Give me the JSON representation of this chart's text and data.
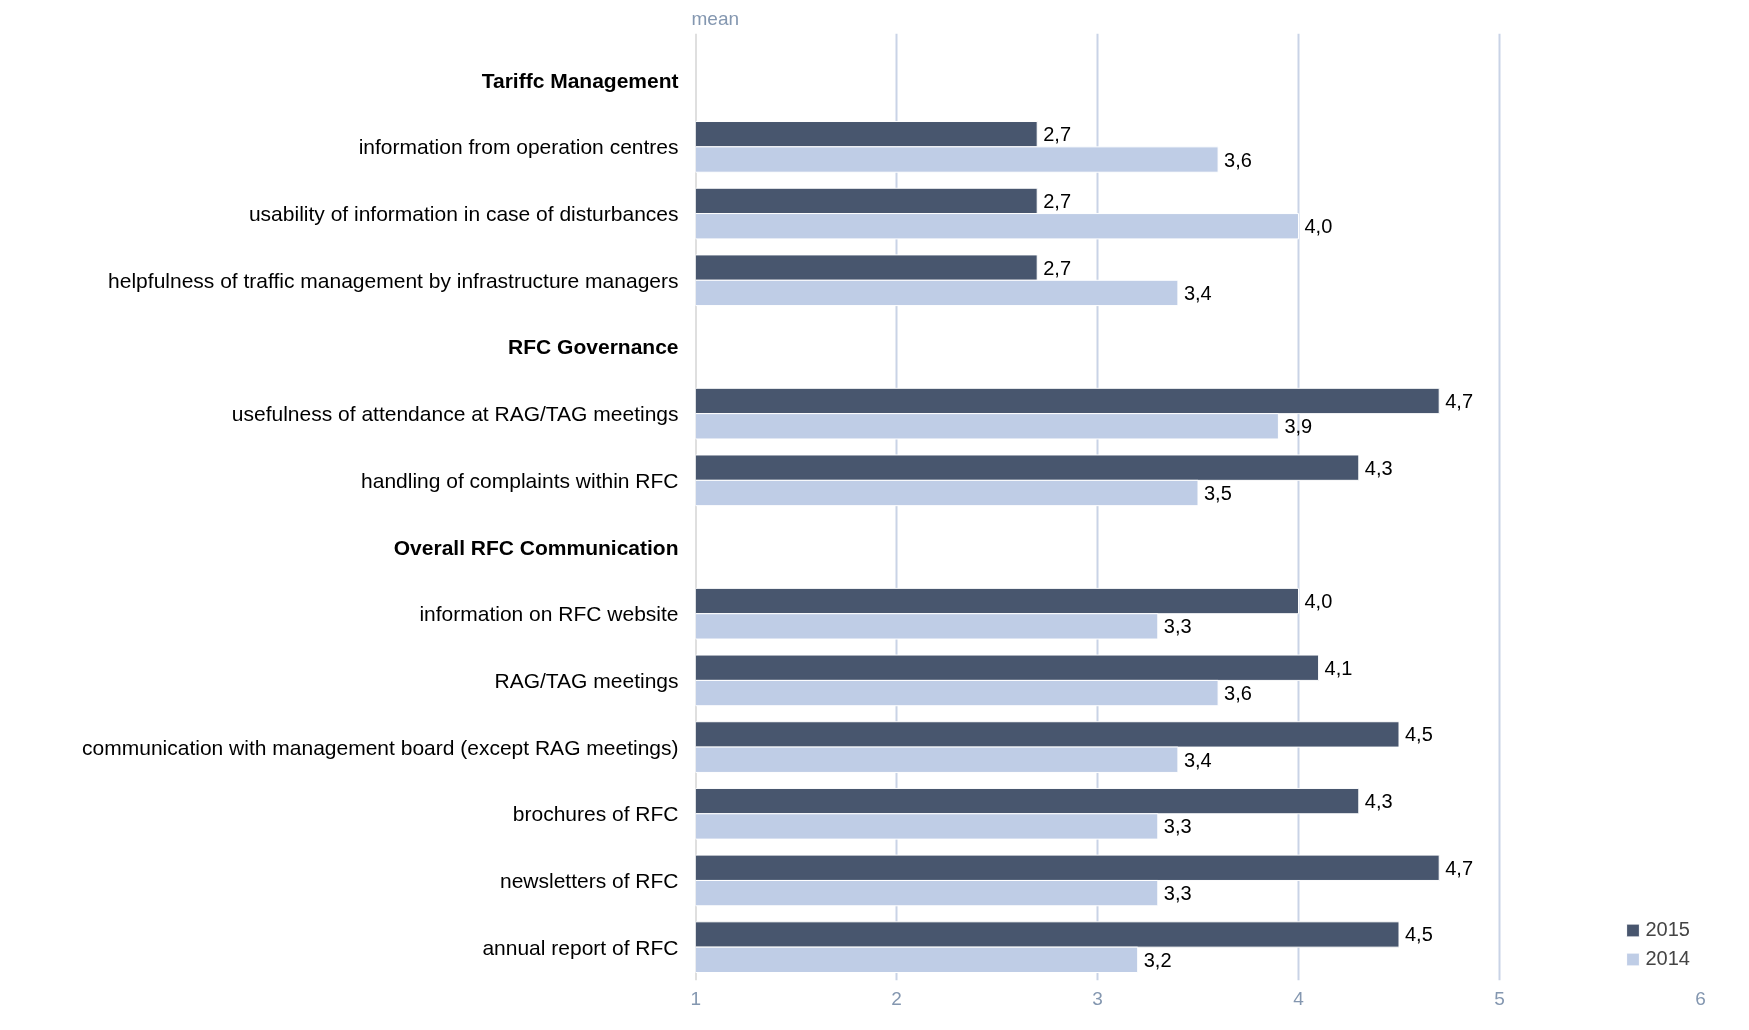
{
  "chart_data": {
    "type": "bar",
    "orientation": "horizontal",
    "xlabel": "mean",
    "categories": [
      "Tariffc Management",
      "information from operation centres",
      "usability of information in case of disturbances",
      "helpfulness of traffic management by infrastructure managers",
      "RFC Governance",
      "usefulness of attendance at RAG/TAG meetings",
      "handling of complaints within RFC",
      "Overall RFC Communication",
      "information on RFC website",
      "RAG/TAG meetings",
      "communication with management board (except RAG meetings)",
      "brochures of RFC",
      "newsletters of RFC",
      "annual report of RFC"
    ],
    "series": [
      {
        "name": "2015",
        "color": "#48566e",
        "values": [
          null,
          2.7,
          2.7,
          2.7,
          null,
          4.7,
          4.3,
          null,
          4.0,
          4.1,
          4.5,
          4.3,
          4.7,
          4.5
        ],
        "value_labels": [
          null,
          "2,7",
          "2,7",
          "2,7",
          null,
          "4,7",
          "4,3",
          null,
          "4,0",
          "4,1",
          "4,5",
          "4,3",
          "4,7",
          "4,5"
        ]
      },
      {
        "name": "2014",
        "color": "#bfcde6",
        "values": [
          null,
          3.6,
          4.0,
          3.4,
          null,
          3.9,
          3.5,
          null,
          3.3,
          3.6,
          3.4,
          3.3,
          3.3,
          3.2
        ],
        "value_labels": [
          null,
          "3,6",
          "4,0",
          "3,4",
          null,
          "3,9",
          "3,5",
          null,
          "3,3",
          "3,6",
          "3,4",
          "3,3",
          "3,3",
          "3,2"
        ]
      }
    ],
    "xlim": [
      1,
      6
    ],
    "xticks": [
      1,
      2,
      3,
      4,
      5,
      6
    ],
    "grid": "x",
    "legend": "bottom right"
  }
}
